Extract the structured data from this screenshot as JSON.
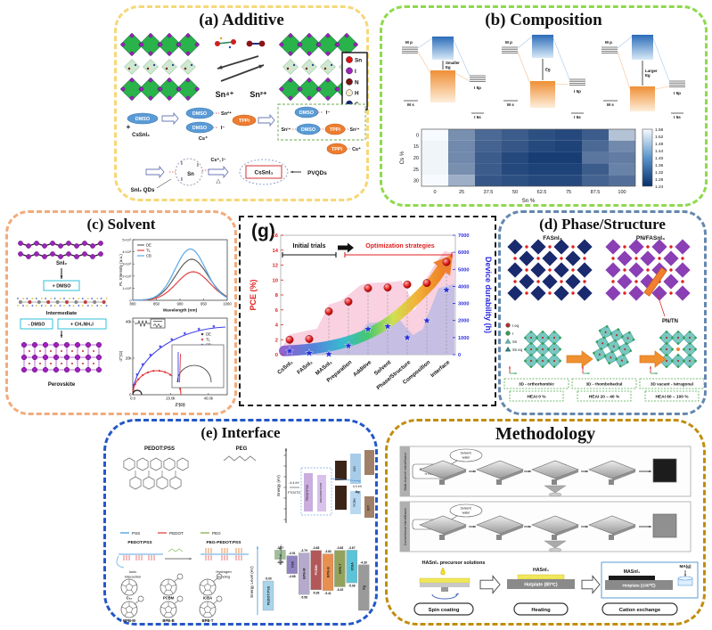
{
  "panels": {
    "a": {
      "title": "(a) Additive",
      "sn4": "Sn⁴⁺",
      "sn2": "Sn²⁺",
      "legend": [
        {
          "label": "Sn",
          "color": "#e01010"
        },
        {
          "label": "I",
          "color": "#a020c0"
        },
        {
          "label": "N",
          "color": "#7a1010"
        },
        {
          "label": "H",
          "color": "#f5ead2"
        },
        {
          "label": "C",
          "color": "#102080"
        }
      ],
      "reaction": {
        "dmso": "DMSO",
        "plus": "+",
        "precursor": "CsSnI₃",
        "cs": "Cs⁺",
        "sn2": "Sn²⁺",
        "iodide": "I⁻",
        "tppi": "TPPi"
      },
      "qd": {
        "label": "SnI₂ QDs",
        "sn": "Sn",
        "i": "I",
        "arrow_top": "Cs⁺, I⁻",
        "delta": "△",
        "product": "CsSnI₃",
        "pvqds": "PVQDs"
      }
    },
    "b": {
      "title": "(b) Composition",
      "bands": {
        "mp": "M p",
        "ms": "M s",
        "i5p": "I 5p",
        "i5s": "I 5s",
        "gaps": [
          "Smaller Eg",
          "Eg",
          "Larger Eg"
        ]
      }
    },
    "c": {
      "title": "(c) Solvent",
      "flow": {
        "sni2": "SnI₂",
        "add_dmso": "+ DMSO",
        "intermediate": "Intermediate",
        "remove_dmso": "- DMSO",
        "add_mai": "+ CH₃NH₃I",
        "perovskite": "Perovskite"
      }
    },
    "g": {
      "label": "(g)"
    },
    "d": {
      "title": "(d) Phase/Structure",
      "fasni3": "FASnI₃",
      "pn_fasni3": "PN/FASnI₃",
      "pn_tn": "PN/TN",
      "legend": [
        {
          "label": "I eq",
          "color": "#b03030",
          "shape": "circle"
        },
        {
          "label": "I",
          "color": "#2fa050",
          "shape": "circle"
        },
        {
          "label": "Sn",
          "color": "#66b8b0",
          "shape": "triangle"
        },
        {
          "label": "Sn eq",
          "color": "#2d8077",
          "shape": "triangle"
        }
      ],
      "phases": [
        {
          "name": "3D - orthorhombic",
          "heai": "HEAI 0 %"
        },
        {
          "name": "3D - rhombohedral",
          "heai": "HEAI 20 – 40 %"
        },
        {
          "name": "3D vacant - tetragonal",
          "heai": "HEAI 60 – 100 %"
        }
      ]
    },
    "e": {
      "title": "(e) Interface",
      "pedotpss": "PEDOT:PSS",
      "peg": "PEG",
      "legend": [
        {
          "label": "PSS",
          "color": "#7ab8e8"
        },
        {
          "label": "PEDOT",
          "color": "#e87a7a"
        },
        {
          "label": "PEG",
          "color": "#a8c87a"
        }
      ],
      "left_stack": "PEDOT:PSS",
      "right_stack": "PEG-PEDOT:PSS",
      "ionic": "Ionic interaction",
      "hbond": "Hydrogen bonding",
      "energy_axis": "Energy (eV)",
      "fto": "FTO/ITO",
      "fto_value": "-4.4 eV",
      "ag": "Ag",
      "ag_value": "4.3 eV",
      "c60_bar": "C60",
      "pcbm_bar": "PCBM",
      "bcp_bar": "BCP",
      "fullerenes": [
        "C₆₀",
        "PCBM",
        "ICBA",
        "BPB-M",
        "BPB-B",
        "BPB-T"
      ]
    },
    "m": {
      "title": "Methodology",
      "rows": [
        {
          "side": "Multi-channel interdiffusion",
          "solvent": "Solvent: water",
          "bubble_lines": [
            "PEDOT:PSS",
            "➔ FAI"
          ]
        },
        {
          "side": "Conventional interdiffusion",
          "solvent": "Solvent: water",
          "bubble_lines": [
            "➔ FAI"
          ]
        }
      ],
      "precursor": "HASnI₃ precursor solutions",
      "film1": "HASnI₃",
      "hotplate1": "Hotplate (80℃)",
      "film2": "MASnI₃",
      "hotplate2": "Hotplate (100℃)",
      "ma_gas": "MA(g)",
      "steps": [
        "Spin coating",
        "Heating",
        "Cation exchange"
      ]
    }
  },
  "chart_data": [
    {
      "id": "optimization-summary",
      "type": "scatter",
      "panel": "g",
      "categories": [
        "CsSnI₃",
        "FASnI₃",
        "MASnI₃",
        "Preparation",
        "Additive",
        "Solvent",
        "Phase/Structure",
        "Composition",
        "Interface"
      ],
      "series": [
        {
          "name": "PCE (%)",
          "marker": "circle",
          "color": "#e02020",
          "values": [
            2.0,
            2.1,
            5.8,
            7.1,
            8.9,
            9.0,
            9.4,
            9.6,
            12.4
          ]
        },
        {
          "name": "Device durability (h)",
          "marker": "star",
          "color": "#2a2ae0",
          "values": [
            220,
            90,
            30,
            520,
            1500,
            1660,
            1000,
            2000,
            3800
          ]
        }
      ],
      "ylabel_left": "PCE (%)",
      "ylabel_right": "Device durability (h)",
      "ylim_left": [
        0,
        16
      ],
      "yticks_left": [
        0,
        2,
        4,
        6,
        8,
        10,
        12,
        14,
        16
      ],
      "ylim_right": [
        0,
        7000
      ],
      "yticks_right": [
        0,
        1000,
        2000,
        3000,
        4000,
        5000,
        6000,
        7000
      ],
      "annotations": {
        "initial": "Initial trials",
        "optimization": "Optimization strategies"
      }
    },
    {
      "id": "bandgap-heatmap",
      "type": "heatmap",
      "panel": "b",
      "xlabel": "Sn %",
      "ylabel": "Cs %",
      "x": [
        "0",
        "25",
        "37.5",
        "50",
        "62.5",
        "75",
        "87.5",
        "100"
      ],
      "y": [
        "0",
        "15",
        "20",
        "25",
        "30"
      ],
      "values": [
        [
          1.56,
          1.39,
          1.33,
          1.31,
          1.29,
          1.28,
          1.31,
          1.47
        ],
        [
          1.55,
          1.38,
          1.32,
          1.3,
          1.28,
          1.27,
          1.33,
          1.38
        ],
        [
          1.55,
          1.38,
          1.31,
          1.28,
          1.26,
          1.26,
          1.35,
          1.36
        ],
        [
          1.55,
          1.39,
          1.31,
          1.28,
          1.27,
          1.27,
          1.31,
          1.37
        ],
        [
          1.56,
          1.44,
          1.3,
          1.29,
          1.28,
          1.28,
          1.32,
          1.34
        ]
      ],
      "colorbar": {
        "min": 1.24,
        "max": 1.56,
        "ticks": [
          "1.56",
          "1.52",
          "1.48",
          "1.44",
          "1.40",
          "1.36",
          "1.32",
          "1.28",
          "1.24"
        ]
      }
    },
    {
      "id": "pl-spectra",
      "type": "line",
      "panel": "c",
      "xlabel": "Wavelength (nm)",
      "ylabel": "PL Intensity (a.u.)",
      "xlim": [
        800,
        1000
      ],
      "xticks": [
        800,
        850,
        900,
        950,
        1000
      ],
      "yticks": [
        "0",
        "1×10⁵",
        "2×10⁵",
        "3×10⁵",
        "4×10⁵",
        "5×10⁵"
      ],
      "series": [
        {
          "name": "DE",
          "color": "#606060",
          "peak_nm": 925,
          "peak_intensity": 360000,
          "fwhm_nm": 80
        },
        {
          "name": "TL",
          "color": "#e84040",
          "peak_nm": 928,
          "peak_intensity": 250000,
          "fwhm_nm": 82
        },
        {
          "name": "CB",
          "color": "#5aa8e8",
          "peak_nm": 922,
          "peak_intensity": 450000,
          "fwhm_nm": 76
        }
      ]
    },
    {
      "id": "impedance-nyquist",
      "type": "scatter",
      "panel": "c",
      "xlabel": "Z'(Ω)",
      "ylabel": "-Z''(Ω)",
      "xticks": [
        "0.0",
        "20.0k",
        "40.0k"
      ],
      "yticks": [
        "0",
        "20k",
        "40k"
      ],
      "series": [
        {
          "name": "DE",
          "color": "#202020",
          "arc_radius_ohm": 1500
        },
        {
          "name": "TL",
          "color": "#e03030",
          "arc_radius_ohm": 13000
        },
        {
          "name": "CB",
          "color": "#4040e8",
          "arc_radius_ohm": 40000
        }
      ]
    },
    {
      "id": "energy-levels",
      "type": "bar",
      "panel": "e",
      "ylabel": "Energy Level (eV)",
      "bars": [
        {
          "label": "PEDOT:PSS",
          "top": -5.0,
          "bottom": null,
          "color": "#a8d4ec"
        },
        {
          "label": "MASnI₃₋ₓBrₓ",
          "top": -3.67,
          "bottom": -4.06,
          "color": "#9fbf9a"
        },
        {
          "label": "C60",
          "top": -3.91,
          "bottom": -4.68,
          "color": "#8f84bf"
        },
        {
          "label": "BPB-M",
          "top": -3.79,
          "bottom": -5.58,
          "color": "#b5aacb"
        },
        {
          "label": "PCBM",
          "top": -3.68,
          "bottom": -5.38,
          "color": "#b25858"
        },
        {
          "label": "BPB-B",
          "top": -3.83,
          "bottom": -5.41,
          "color": "#e89050"
        },
        {
          "label": "BPB-T",
          "top": -3.68,
          "bottom": -5.25,
          "color": "#93a35e"
        },
        {
          "label": "ICBA",
          "top": -3.67,
          "bottom": -5.08,
          "color": "#5cc4d8"
        },
        {
          "label": "Ag",
          "top": -4.3,
          "bottom": null,
          "color": "#9a9a9a"
        }
      ]
    }
  ]
}
